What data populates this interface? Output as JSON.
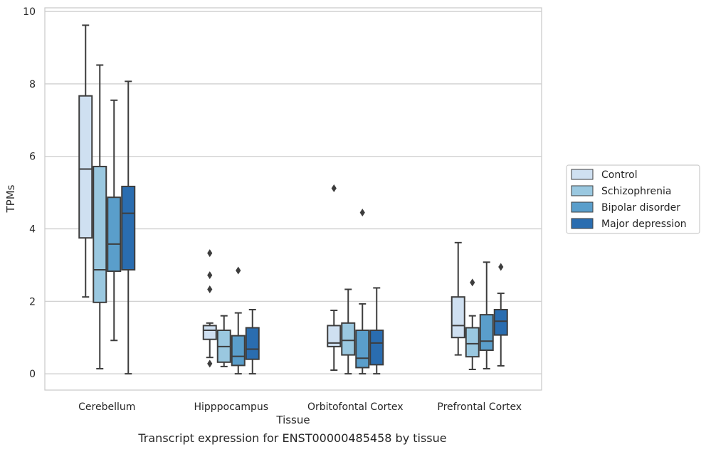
{
  "caption": "Transcript expression for ENST00000485458 by tissue",
  "chart_data": {
    "type": "boxplot",
    "xlabel": "Tissue",
    "ylabel": "TPMs",
    "ylim": [
      -0.45,
      10.1
    ],
    "yticks": [
      "0",
      "2",
      "4",
      "6",
      "8",
      "10"
    ],
    "grid": "horizontal",
    "legend_position": "right",
    "categories": [
      "Cerebellum",
      "Hipppocampus",
      "Orbitofontal Cortex",
      "Prefrontal Cortex"
    ],
    "series": [
      {
        "name": "Control",
        "color": "#cfe0f1",
        "boxes": [
          {
            "whislo": 2.12,
            "q1": 3.75,
            "med": 5.65,
            "q3": 7.67,
            "whishi": 9.62,
            "fliers": []
          },
          {
            "whislo": 0.45,
            "q1": 0.95,
            "med": 1.2,
            "q3": 1.33,
            "whishi": 1.4,
            "fliers": [
              3.33,
              2.72,
              2.33,
              0.28
            ]
          },
          {
            "whislo": 0.1,
            "q1": 0.75,
            "med": 0.85,
            "q3": 1.33,
            "whishi": 1.75,
            "fliers": [
              5.12
            ]
          },
          {
            "whislo": 0.52,
            "q1": 1.0,
            "med": 1.33,
            "q3": 2.12,
            "whishi": 3.62,
            "fliers": []
          }
        ]
      },
      {
        "name": "Schizophrenia",
        "color": "#9ac8e0",
        "boxes": [
          {
            "whislo": 0.14,
            "q1": 1.97,
            "med": 2.87,
            "q3": 5.72,
            "whishi": 8.52,
            "fliers": []
          },
          {
            "whislo": 0.2,
            "q1": 0.32,
            "med": 0.75,
            "q3": 1.2,
            "whishi": 1.6,
            "fliers": []
          },
          {
            "whislo": 0.0,
            "q1": 0.52,
            "med": 0.92,
            "q3": 1.4,
            "whishi": 2.33,
            "fliers": []
          },
          {
            "whislo": 0.12,
            "q1": 0.47,
            "med": 0.83,
            "q3": 1.27,
            "whishi": 1.6,
            "fliers": [
              2.52
            ]
          }
        ]
      },
      {
        "name": "Bipolar disorder",
        "color": "#5a9ecb",
        "boxes": [
          {
            "whislo": 0.92,
            "q1": 2.83,
            "med": 3.58,
            "q3": 4.87,
            "whishi": 7.55,
            "fliers": []
          },
          {
            "whislo": 0.0,
            "q1": 0.23,
            "med": 0.48,
            "q3": 1.05,
            "whishi": 1.68,
            "fliers": [
              2.85
            ]
          },
          {
            "whislo": 0.0,
            "q1": 0.17,
            "med": 0.43,
            "q3": 1.2,
            "whishi": 1.93,
            "fliers": [
              4.45
            ]
          },
          {
            "whislo": 0.14,
            "q1": 0.65,
            "med": 0.9,
            "q3": 1.63,
            "whishi": 3.08,
            "fliers": []
          }
        ]
      },
      {
        "name": "Major depression",
        "color": "#2a6db0",
        "boxes": [
          {
            "whislo": 0.0,
            "q1": 2.87,
            "med": 4.43,
            "q3": 5.17,
            "whishi": 8.07,
            "fliers": []
          },
          {
            "whislo": 0.0,
            "q1": 0.4,
            "med": 0.68,
            "q3": 1.27,
            "whishi": 1.77,
            "fliers": []
          },
          {
            "whislo": 0.0,
            "q1": 0.25,
            "med": 0.85,
            "q3": 1.2,
            "whishi": 2.37,
            "fliers": []
          },
          {
            "whislo": 0.22,
            "q1": 1.07,
            "med": 1.45,
            "q3": 1.77,
            "whishi": 2.22,
            "fliers": [
              2.95
            ]
          }
        ]
      }
    ]
  }
}
